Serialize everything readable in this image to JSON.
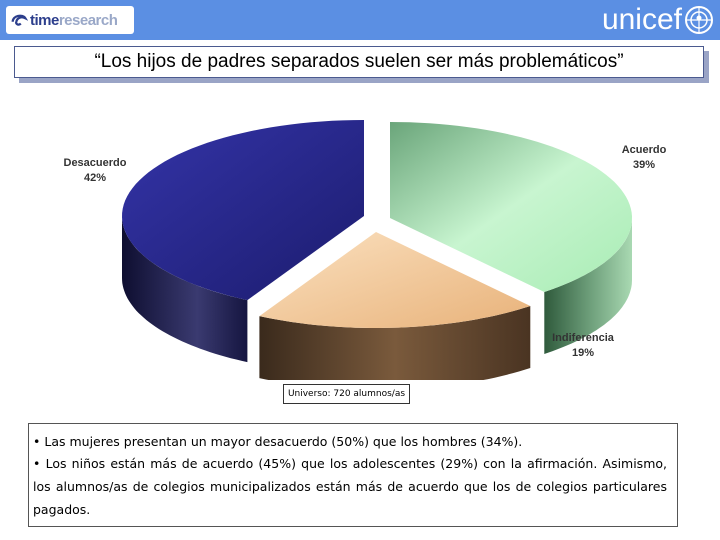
{
  "header": {
    "left_logo": {
      "part1": "time",
      "part2": "research"
    },
    "right_logo": "unicef"
  },
  "title": "“Los hijos de padres separados suelen ser más problemáticos”",
  "chart_data": {
    "type": "pie",
    "categories": [
      "Acuerdo",
      "Indiferencia",
      "Desacuerdo"
    ],
    "values": [
      39,
      19,
      42
    ],
    "labels": [
      "Acuerdo\n39%",
      "Indiferencia\n19%",
      "Desacuerdo\n42%"
    ],
    "colors": [
      "#b8f0c0",
      "#f2c48e",
      "#2a2a8c"
    ],
    "exploded": true,
    "three_d": true
  },
  "universe": "Universo: 720 alumnos/as",
  "notes": [
    "Las mujeres presentan un mayor desacuerdo (50%) que los hombres (34%).",
    "Los niños están más de acuerdo (45%) que los adolescentes (29%) con la afirmación. Asimismo, los alumnos/as de colegios municipalizados están más de acuerdo que los de colegios particulares pagados."
  ]
}
